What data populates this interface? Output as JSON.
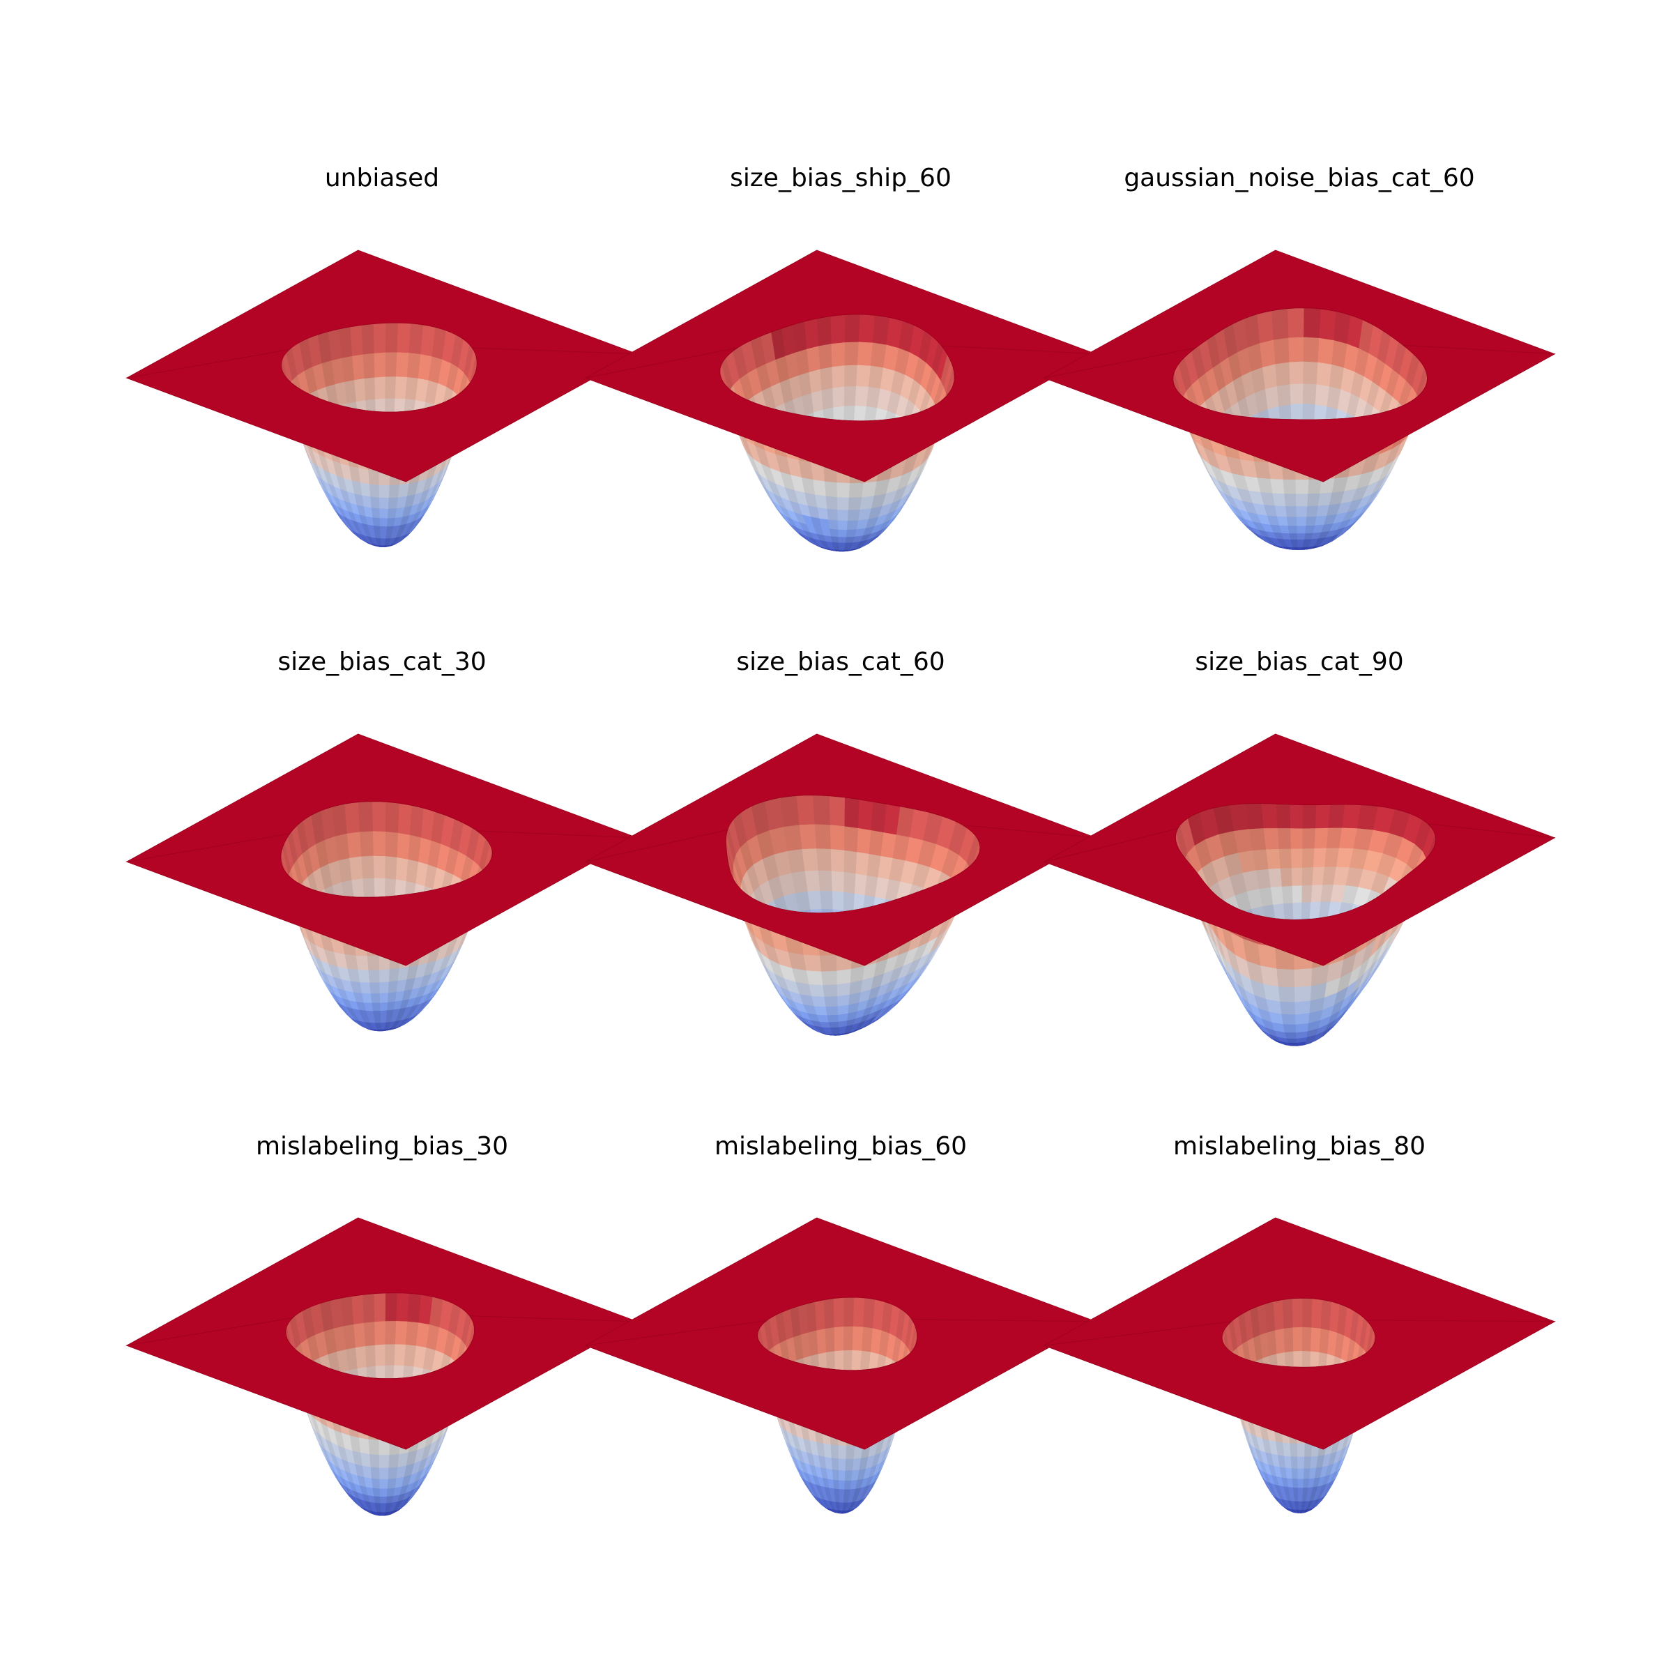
{
  "figure": {
    "colormap": "coolwarm",
    "colors": {
      "plane": "#b40426",
      "low": "#3b4cc0",
      "mid": "#dddddd",
      "high": "#b40426",
      "background": "#ffffff"
    }
  },
  "chart_data": [
    {
      "type": "surface3d",
      "title": "unbiased",
      "grid": false,
      "axes_visible": false,
      "bowl": {
        "depth": 1.0,
        "rim_radius": 0.54,
        "floor_tilt": 0.0,
        "asymmetry": 0.05,
        "rim_wobble": 0.04
      }
    },
    {
      "type": "surface3d",
      "title": "size_bias_ship_60",
      "grid": false,
      "axes_visible": false,
      "bowl": {
        "depth": 1.0,
        "rim_radius": 0.64,
        "floor_tilt": 0.1,
        "asymmetry": 0.18,
        "rim_wobble": 0.06
      }
    },
    {
      "type": "surface3d",
      "title": "gaussian_noise_bias_cat_60",
      "grid": false,
      "axes_visible": false,
      "bowl": {
        "depth": 1.0,
        "rim_radius": 0.68,
        "floor_tilt": 0.05,
        "asymmetry": 0.12,
        "rim_wobble": 0.08
      }
    },
    {
      "type": "surface3d",
      "title": "size_bias_cat_30",
      "grid": false,
      "axes_visible": false,
      "bowl": {
        "depth": 1.0,
        "rim_radius": 0.58,
        "floor_tilt": 0.0,
        "asymmetry": 0.06,
        "rim_wobble": 0.05
      }
    },
    {
      "type": "surface3d",
      "title": "size_bias_cat_60",
      "grid": false,
      "axes_visible": false,
      "bowl": {
        "depth": 1.0,
        "rim_radius": 0.7,
        "floor_tilt": 0.05,
        "asymmetry": 0.15,
        "rim_wobble": 0.09
      }
    },
    {
      "type": "surface3d",
      "title": "size_bias_cat_90",
      "grid": false,
      "axes_visible": false,
      "bowl": {
        "depth": 1.0,
        "rim_radius": 0.7,
        "floor_tilt": 0.25,
        "asymmetry": 0.3,
        "rim_wobble": 0.12
      }
    },
    {
      "type": "surface3d",
      "title": "mislabeling_bias_30",
      "grid": false,
      "axes_visible": false,
      "bowl": {
        "depth": 1.0,
        "rim_radius": 0.52,
        "floor_tilt": 0.05,
        "asymmetry": 0.08,
        "rim_wobble": 0.04
      }
    },
    {
      "type": "surface3d",
      "title": "mislabeling_bias_60",
      "grid": false,
      "axes_visible": false,
      "bowl": {
        "depth": 1.0,
        "rim_radius": 0.44,
        "floor_tilt": 0.0,
        "asymmetry": 0.06,
        "rim_wobble": 0.05
      }
    },
    {
      "type": "surface3d",
      "title": "mislabeling_bias_80",
      "grid": false,
      "axes_visible": false,
      "bowl": {
        "depth": 1.0,
        "rim_radius": 0.42,
        "floor_tilt": 0.0,
        "asymmetry": 0.04,
        "rim_wobble": 0.04
      }
    }
  ]
}
